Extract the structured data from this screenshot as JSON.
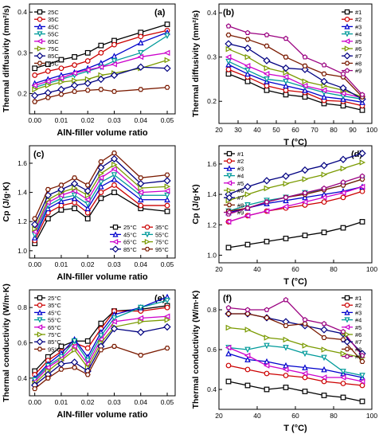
{
  "colors": [
    "#000000",
    "#cc0000",
    "#0000cc",
    "#009a9a",
    "#cc00cc",
    "#7a9a00",
    "#000080",
    "#7a1a00",
    "#9a0080"
  ],
  "chart_data": [
    {
      "type": "line",
      "panel_label": "(a)",
      "xlabel": "AlN-filler volume ratio",
      "ylabel": "Thermal diffusivity (mm²/s)",
      "xlim": [
        -0.002,
        0.053
      ],
      "ylim": [
        0.15,
        0.42
      ],
      "xticks": [
        0.0,
        0.01,
        0.02,
        0.03,
        0.04,
        0.05
      ],
      "xticklabels": [
        "0.00",
        "0.01",
        "0.02",
        "0.03",
        "0.04",
        "0.05"
      ],
      "yticks": [
        0.2,
        0.3,
        0.4
      ],
      "yticklabels": [
        "0.2",
        "0.3",
        "0.4"
      ],
      "legend_position": "top-left",
      "x": [
        0.0,
        0.005,
        0.01,
        0.015,
        0.02,
        0.025,
        0.03,
        0.04,
        0.05
      ],
      "series": [
        {
          "name": "25C",
          "values": [
            0.262,
            0.272,
            0.283,
            0.29,
            0.3,
            0.318,
            0.33,
            0.35,
            0.37
          ]
        },
        {
          "name": "35C",
          "values": [
            0.245,
            0.255,
            0.262,
            0.27,
            0.28,
            0.3,
            0.32,
            0.34,
            0.355
          ]
        },
        {
          "name": "45C",
          "values": [
            0.225,
            0.235,
            0.245,
            0.252,
            0.262,
            0.275,
            0.292,
            0.325,
            0.35
          ]
        },
        {
          "name": "55C",
          "values": [
            0.215,
            0.225,
            0.235,
            0.245,
            0.255,
            0.265,
            0.28,
            0.3,
            0.342
          ]
        },
        {
          "name": "65C",
          "values": [
            0.22,
            0.23,
            0.238,
            0.25,
            0.258,
            0.265,
            0.272,
            0.29,
            0.3
          ]
        },
        {
          "name": "75C",
          "values": [
            0.21,
            0.22,
            0.228,
            0.232,
            0.235,
            0.245,
            0.25,
            0.262,
            0.282
          ]
        },
        {
          "name": "85C",
          "values": [
            0.195,
            0.202,
            0.21,
            0.22,
            0.225,
            0.235,
            0.245,
            0.265,
            0.262
          ]
        },
        {
          "name": "95C",
          "values": [
            0.18,
            0.19,
            0.198,
            0.205,
            0.208,
            0.21,
            0.205,
            0.21,
            0.215
          ]
        }
      ]
    },
    {
      "type": "line",
      "panel_label": "(b)",
      "xlabel": "T (°C)",
      "ylabel": "Thermal diffusivity (mm²/s)",
      "xlim": [
        20,
        100
      ],
      "ylim": [
        0.15,
        0.42
      ],
      "xticks": [
        20,
        30,
        40,
        50,
        60,
        70,
        80,
        90,
        100
      ],
      "xticklabels": [
        "20",
        "30",
        "40",
        "50",
        "60",
        "70",
        "80",
        "90",
        "100"
      ],
      "yticks": [
        0.2,
        0.3,
        0.4
      ],
      "yticklabels": [
        "0.2",
        "0.3",
        "0.4"
      ],
      "legend_position": "top-right",
      "x": [
        25,
        35,
        45,
        55,
        65,
        75,
        85,
        95
      ],
      "series": [
        {
          "name": "#1",
          "values": [
            0.262,
            0.245,
            0.225,
            0.215,
            0.21,
            0.195,
            0.19,
            0.18
          ]
        },
        {
          "name": "#2",
          "values": [
            0.272,
            0.255,
            0.235,
            0.225,
            0.22,
            0.202,
            0.2,
            0.19
          ]
        },
        {
          "name": "#3",
          "values": [
            0.283,
            0.262,
            0.245,
            0.235,
            0.225,
            0.21,
            0.205,
            0.198
          ]
        },
        {
          "name": "#4",
          "values": [
            0.29,
            0.27,
            0.25,
            0.245,
            0.232,
            0.22,
            0.212,
            0.205
          ]
        },
        {
          "name": "#5",
          "values": [
            0.3,
            0.28,
            0.262,
            0.255,
            0.235,
            0.225,
            0.218,
            0.208
          ]
        },
        {
          "name": "#6",
          "values": [
            0.318,
            0.3,
            0.275,
            0.265,
            0.245,
            0.235,
            0.225,
            0.21
          ]
        },
        {
          "name": "#7",
          "values": [
            0.33,
            0.32,
            0.292,
            0.275,
            0.272,
            0.245,
            0.23,
            0.205
          ]
        },
        {
          "name": "#8",
          "values": [
            0.35,
            0.34,
            0.325,
            0.3,
            0.28,
            0.262,
            0.255,
            0.21
          ]
        },
        {
          "name": "#9",
          "values": [
            0.37,
            0.355,
            0.35,
            0.342,
            0.3,
            0.282,
            0.262,
            0.215
          ]
        }
      ]
    },
    {
      "type": "line",
      "panel_label": "(c)",
      "xlabel": "AlN-filler volume ratio",
      "ylabel": "Cp (J/g·K)",
      "xlim": [
        -0.002,
        0.053
      ],
      "ylim": [
        0.95,
        1.72
      ],
      "xticks": [
        0.0,
        0.01,
        0.02,
        0.03,
        0.04,
        0.05
      ],
      "xticklabels": [
        "0.00",
        "0.01",
        "0.02",
        "0.03",
        "0.04",
        "0.05"
      ],
      "yticks": [
        1.0,
        1.2,
        1.4,
        1.6
      ],
      "yticklabels": [
        "1.0",
        "1.2",
        "1.4",
        "1.6"
      ],
      "legend_position": "bottom-right",
      "x": [
        0.0,
        0.005,
        0.01,
        0.015,
        0.02,
        0.025,
        0.03,
        0.04,
        0.05
      ],
      "series": [
        {
          "name": "25°C",
          "values": [
            1.05,
            1.22,
            1.28,
            1.29,
            1.22,
            1.36,
            1.4,
            1.29,
            1.27
          ]
        },
        {
          "name": "35°C",
          "values": [
            1.07,
            1.26,
            1.31,
            1.33,
            1.26,
            1.4,
            1.45,
            1.31,
            1.31
          ]
        },
        {
          "name": "45°C",
          "values": [
            1.09,
            1.29,
            1.34,
            1.36,
            1.29,
            1.44,
            1.49,
            1.35,
            1.35
          ]
        },
        {
          "name": "55°C",
          "values": [
            1.11,
            1.31,
            1.36,
            1.38,
            1.32,
            1.47,
            1.52,
            1.38,
            1.38
          ]
        },
        {
          "name": "65°C",
          "values": [
            1.13,
            1.33,
            1.38,
            1.41,
            1.35,
            1.5,
            1.56,
            1.4,
            1.41
          ]
        },
        {
          "name": "75°C",
          "values": [
            1.15,
            1.35,
            1.4,
            1.43,
            1.38,
            1.53,
            1.59,
            1.43,
            1.44
          ]
        },
        {
          "name": "85°C",
          "values": [
            1.18,
            1.38,
            1.42,
            1.46,
            1.41,
            1.57,
            1.63,
            1.46,
            1.48
          ]
        },
        {
          "name": "95°C",
          "values": [
            1.22,
            1.42,
            1.45,
            1.5,
            1.45,
            1.61,
            1.67,
            1.5,
            1.52
          ]
        }
      ]
    },
    {
      "type": "line",
      "panel_label": "(d)",
      "xlabel": "T (°C)",
      "ylabel": "Cp (J/g·K)",
      "xlim": [
        20,
        100
      ],
      "ylim": [
        0.95,
        1.72
      ],
      "xticks": [
        20,
        40,
        60,
        80,
        100
      ],
      "xticklabels": [
        "20",
        "40",
        "60",
        "80",
        "100"
      ],
      "yticks": [
        1.0,
        1.2,
        1.4,
        1.6
      ],
      "yticklabels": [
        "1.0",
        "1.2",
        "1.4",
        "1.6"
      ],
      "legend_position": "top-left",
      "x": [
        25,
        35,
        45,
        55,
        65,
        75,
        85,
        95
      ],
      "series": [
        {
          "name": "#1",
          "values": [
            1.05,
            1.07,
            1.09,
            1.11,
            1.13,
            1.15,
            1.18,
            1.22
          ]
        },
        {
          "name": "#2",
          "values": [
            1.22,
            1.26,
            1.29,
            1.31,
            1.33,
            1.35,
            1.38,
            1.42
          ]
        },
        {
          "name": "#3",
          "values": [
            1.28,
            1.31,
            1.34,
            1.36,
            1.38,
            1.4,
            1.42,
            1.45
          ]
        },
        {
          "name": "#4",
          "values": [
            1.29,
            1.33,
            1.36,
            1.38,
            1.41,
            1.43,
            1.46,
            1.5
          ]
        },
        {
          "name": "#5",
          "values": [
            1.22,
            1.26,
            1.29,
            1.32,
            1.35,
            1.38,
            1.41,
            1.45
          ]
        },
        {
          "name": "#6",
          "values": [
            1.36,
            1.4,
            1.44,
            1.47,
            1.5,
            1.53,
            1.57,
            1.61
          ]
        },
        {
          "name": "#7",
          "values": [
            1.4,
            1.45,
            1.49,
            1.52,
            1.56,
            1.59,
            1.63,
            1.67
          ]
        },
        {
          "name": "#8",
          "values": [
            1.29,
            1.31,
            1.35,
            1.38,
            1.4,
            1.43,
            1.46,
            1.5
          ]
        },
        {
          "name": "#9",
          "values": [
            1.27,
            1.31,
            1.35,
            1.38,
            1.41,
            1.44,
            1.48,
            1.52
          ]
        }
      ]
    },
    {
      "type": "line",
      "panel_label": "(e)",
      "xlabel": "AlN-filler volume ratio",
      "ylabel": "Thermal conductivity (W/m·K)",
      "xlim": [
        -0.002,
        0.053
      ],
      "ylim": [
        0.3,
        0.9
      ],
      "xticks": [
        0.0,
        0.01,
        0.02,
        0.03,
        0.04,
        0.05
      ],
      "xticklabels": [
        "0.00",
        "0.01",
        "0.02",
        "0.03",
        "0.04",
        "0.05"
      ],
      "yticks": [
        0.4,
        0.6,
        0.8
      ],
      "yticklabels": [
        "0.4",
        "0.6",
        "0.8"
      ],
      "legend_position": "top-left",
      "x": [
        0.0,
        0.005,
        0.01,
        0.015,
        0.02,
        0.025,
        0.03,
        0.04,
        0.05
      ],
      "series": [
        {
          "name": "25°C",
          "values": [
            0.44,
            0.52,
            0.58,
            0.61,
            0.61,
            0.71,
            0.78,
            0.79,
            0.81
          ]
        },
        {
          "name": "35°C",
          "values": [
            0.42,
            0.5,
            0.55,
            0.6,
            0.57,
            0.68,
            0.78,
            0.78,
            0.8
          ]
        },
        {
          "name": "45°C",
          "values": [
            0.4,
            0.48,
            0.54,
            0.62,
            0.52,
            0.66,
            0.76,
            0.8,
            0.86
          ]
        },
        {
          "name": "55°C",
          "values": [
            0.39,
            0.47,
            0.52,
            0.61,
            0.5,
            0.64,
            0.74,
            0.8,
            0.84
          ]
        },
        {
          "name": "65°C",
          "values": [
            0.38,
            0.46,
            0.51,
            0.58,
            0.48,
            0.62,
            0.72,
            0.74,
            0.75
          ]
        },
        {
          "name": "75°C",
          "values": [
            0.37,
            0.44,
            0.5,
            0.56,
            0.46,
            0.6,
            0.69,
            0.72,
            0.73
          ]
        },
        {
          "name": "85°C",
          "values": [
            0.36,
            0.42,
            0.48,
            0.49,
            0.44,
            0.58,
            0.68,
            0.66,
            0.69
          ]
        },
        {
          "name": "95°C",
          "values": [
            0.34,
            0.4,
            0.45,
            0.46,
            0.42,
            0.56,
            0.58,
            0.53,
            0.57
          ]
        }
      ]
    },
    {
      "type": "line",
      "panel_label": "(f)",
      "xlabel": "T (°C)",
      "ylabel": "Thermal conductivity (W/m·K)",
      "xlim": [
        20,
        100
      ],
      "ylim": [
        0.3,
        0.9
      ],
      "xticks": [
        20,
        40,
        60,
        80,
        100
      ],
      "xticklabels": [
        "20",
        "40",
        "60",
        "80",
        "100"
      ],
      "yticks": [
        0.4,
        0.6,
        0.8
      ],
      "yticklabels": [
        "0.4",
        "0.6",
        "0.8"
      ],
      "legend_position": "top-right",
      "x": [
        25,
        35,
        45,
        55,
        65,
        75,
        85,
        95
      ],
      "series": [
        {
          "name": "#1",
          "values": [
            0.44,
            0.42,
            0.4,
            0.41,
            0.39,
            0.37,
            0.36,
            0.34
          ]
        },
        {
          "name": "#2",
          "values": [
            0.52,
            0.5,
            0.48,
            0.47,
            0.46,
            0.44,
            0.43,
            0.42
          ]
        },
        {
          "name": "#3",
          "values": [
            0.58,
            0.55,
            0.54,
            0.52,
            0.51,
            0.5,
            0.48,
            0.46
          ]
        },
        {
          "name": "#4",
          "values": [
            0.61,
            0.6,
            0.62,
            0.61,
            0.58,
            0.56,
            0.49,
            0.47
          ]
        },
        {
          "name": "#5",
          "values": [
            0.61,
            0.57,
            0.52,
            0.5,
            0.48,
            0.46,
            0.46,
            0.44
          ]
        },
        {
          "name": "#6",
          "values": [
            0.71,
            0.7,
            0.66,
            0.65,
            0.62,
            0.6,
            0.58,
            0.56
          ]
        },
        {
          "name": "#7",
          "values": [
            0.78,
            0.78,
            0.76,
            0.74,
            0.72,
            0.7,
            0.68,
            0.58
          ]
        },
        {
          "name": "#8",
          "values": [
            0.78,
            0.78,
            0.76,
            0.72,
            0.73,
            0.66,
            0.65,
            0.54
          ]
        },
        {
          "name": "#9",
          "values": [
            0.81,
            0.8,
            0.8,
            0.85,
            0.75,
            0.73,
            0.69,
            0.57
          ]
        }
      ]
    }
  ]
}
